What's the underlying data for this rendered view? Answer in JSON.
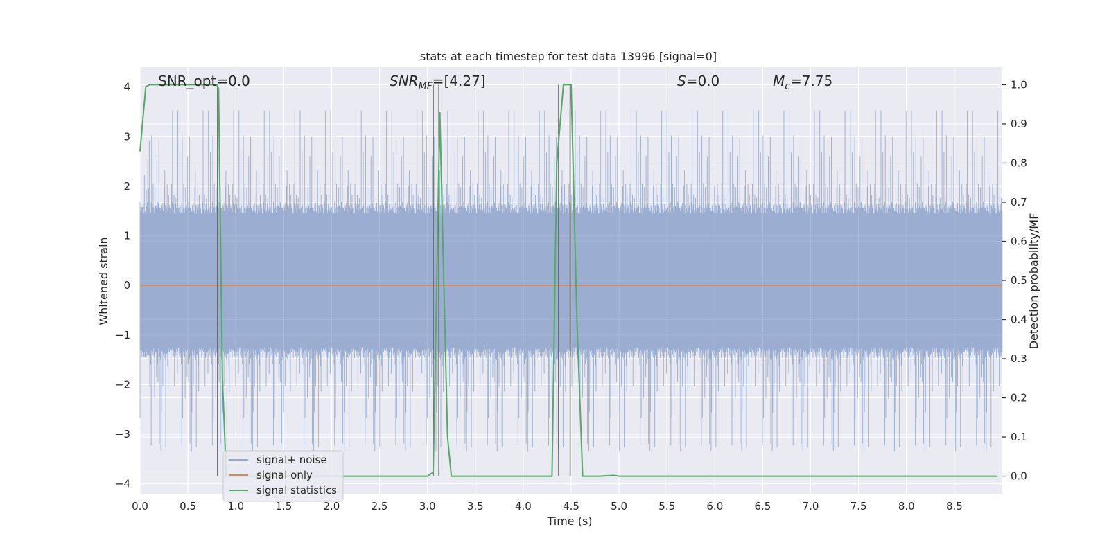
{
  "chart_data": {
    "type": "line",
    "title": "stats at each timestep for test data 13996 [signal=0]",
    "xlabel": "Time (s)",
    "ylabel": "Whitened strain",
    "ylabel_right": "Detection probability/MF",
    "xlim": [
      0.0,
      9.0
    ],
    "ylim": [
      -4.2,
      4.4
    ],
    "ylim_right": [
      -0.045,
      1.045
    ],
    "x_ticks": [
      "0.0",
      "0.5",
      "1.0",
      "1.5",
      "2.0",
      "2.5",
      "3.0",
      "3.5",
      "4.0",
      "4.5",
      "5.0",
      "5.5",
      "6.0",
      "6.5",
      "7.0",
      "7.5",
      "8.0",
      "8.5"
    ],
    "y_ticks": [
      "4",
      "3",
      "2",
      "1",
      "0",
      "−1",
      "−2",
      "−3",
      "−4"
    ],
    "y_ticks_right": [
      "1.0",
      "0.9",
      "0.8",
      "0.7",
      "0.6",
      "0.5",
      "0.4",
      "0.3",
      "0.2",
      "0.1",
      "0.0"
    ],
    "grid": true,
    "annotations": {
      "snr_opt": "SNR_opt=0.0",
      "snr_mf_base": "SNR",
      "snr_mf_sub": "MF",
      "snr_mf_value": "=[4.27]",
      "s_label": "S",
      "s_value": "=0.0",
      "mc_label": "M",
      "mc_sub": "c",
      "mc_value": "=7.75"
    },
    "legend": {
      "placement": "lower-left",
      "entries": [
        "signal+ noise",
        "signal only",
        "signal statistics"
      ]
    },
    "colors": {
      "noise": "#4c72b0",
      "signal": "#dd8452",
      "stats": "#55a868",
      "marker": "#555555",
      "background": "#eaeaf2"
    },
    "series": [
      {
        "name": "signal+ noise",
        "kind": "noise_band",
        "core_range": [
          -1.5,
          1.7
        ],
        "peak_range": [
          -3.5,
          3.8
        ]
      },
      {
        "name": "signal only",
        "x": [
          0.0,
          9.0
        ],
        "y": [
          0.0,
          0.0
        ]
      },
      {
        "name": "signal statistics",
        "axis": "right",
        "x": [
          0.0,
          0.06,
          0.1,
          0.2,
          0.3,
          0.5,
          0.7,
          0.8,
          0.82,
          0.86,
          0.9,
          1.5,
          2.5,
          3.0,
          3.06,
          3.13,
          3.17,
          3.21,
          3.25,
          3.5,
          4.0,
          4.3,
          4.35,
          4.42,
          4.44,
          4.5,
          4.56,
          4.62,
          4.8,
          4.95,
          5.0,
          6.0,
          7.0,
          8.0,
          8.95
        ],
        "y": [
          0.83,
          0.995,
          1.0,
          1.0,
          1.0,
          1.0,
          1.0,
          1.0,
          0.99,
          0.25,
          0.0,
          0.0,
          0.0,
          0.0,
          0.01,
          0.93,
          0.5,
          0.1,
          0.0,
          0.0,
          0.0,
          0.0,
          0.8,
          1.0,
          1.0,
          1.0,
          0.4,
          0.0,
          0.0,
          0.002,
          0.0,
          0.0,
          0.0,
          0.0,
          0.0
        ]
      }
    ],
    "vertical_markers": [
      0.81,
      3.06,
      3.12,
      4.37,
      4.49
    ]
  }
}
